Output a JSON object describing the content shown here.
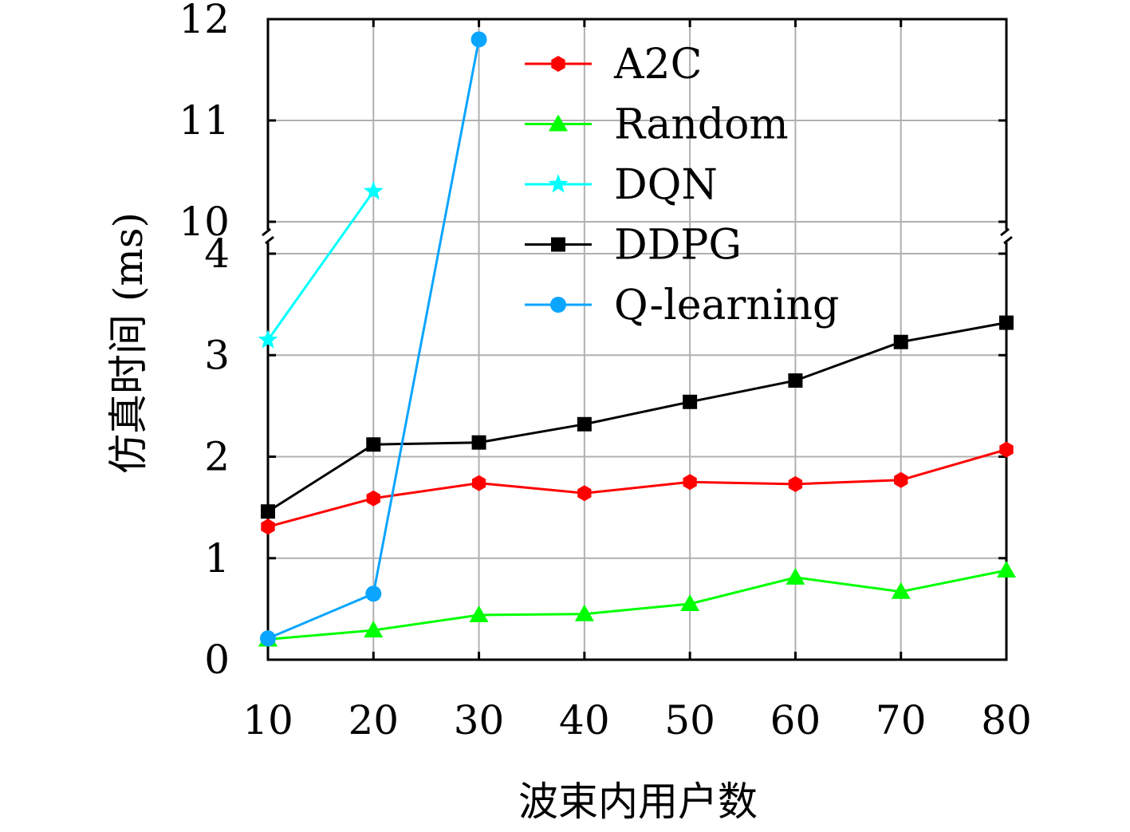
{
  "chart_data": {
    "type": "line",
    "xlabel": "波束内用户数",
    "ylabel": "仿真时间 (ms)",
    "x_ticks": [
      "10",
      "20",
      "30",
      "40",
      "50",
      "60",
      "70",
      "80"
    ],
    "y_ticks_lower": [
      "0",
      "1",
      "2",
      "3",
      "4"
    ],
    "y_ticks_upper": [
      "10",
      "11",
      "12"
    ],
    "xlim": [
      10,
      80
    ],
    "ylim_lower": [
      0,
      4
    ],
    "ylim_upper": [
      10,
      12
    ],
    "broken_y_axis": true,
    "grid": true,
    "legend_position": "top-right",
    "series": [
      {
        "name": "A2C",
        "color": "#ff0000",
        "marker": "hexagon",
        "x": [
          10,
          20,
          30,
          40,
          50,
          60,
          70,
          80
        ],
        "y": [
          1.31,
          1.59,
          1.74,
          1.64,
          1.75,
          1.73,
          1.77,
          2.07
        ]
      },
      {
        "name": "Random",
        "color": "#00ff00",
        "marker": "triangle",
        "x": [
          10,
          20,
          30,
          40,
          50,
          60,
          70,
          80
        ],
        "y": [
          0.2,
          0.29,
          0.44,
          0.45,
          0.55,
          0.81,
          0.67,
          0.88
        ]
      },
      {
        "name": "DQN",
        "color": "#00ffff",
        "marker": "star",
        "x": [
          10,
          20
        ],
        "y": [
          3.15,
          10.3
        ]
      },
      {
        "name": "DDPG",
        "color": "#000000",
        "marker": "square",
        "x": [
          10,
          20,
          30,
          40,
          50,
          60,
          70,
          80
        ],
        "y": [
          1.46,
          2.12,
          2.14,
          2.32,
          2.54,
          2.75,
          3.13,
          3.32
        ]
      },
      {
        "name": "Q-learning",
        "color": "#0aa5ff",
        "marker": "circle",
        "x": [
          10,
          20,
          30
        ],
        "y": [
          0.21,
          0.65,
          11.8
        ]
      }
    ]
  }
}
